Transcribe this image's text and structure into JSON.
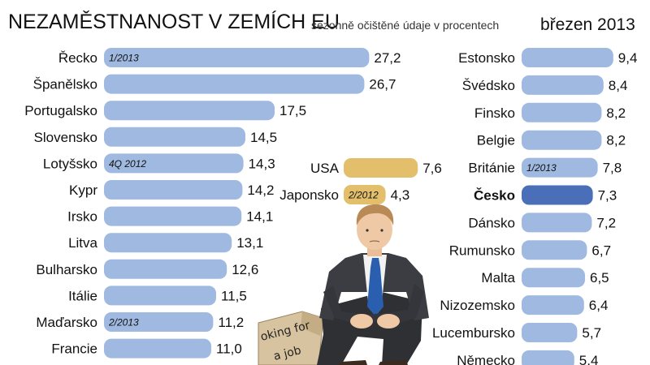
{
  "header": {
    "title": "NEZAMĚSTNANOST V ZEMÍCH EU",
    "subtitle": "sezonně očištěné údaje v procentech",
    "date": "březen 2013"
  },
  "colors": {
    "bar": "#9fb9e0",
    "highlight": "#4a6eb8",
    "non_eu": "#e3bf6c"
  },
  "illustration": {
    "icon": "job-seeker-illustration",
    "sign_text": [
      "oking for",
      "a job"
    ]
  },
  "chart_data": [
    {
      "type": "bar",
      "orientation": "horizontal",
      "xlim": [
        0,
        28
      ],
      "categories": [
        "Řecko",
        "Španělsko",
        "Portugalsko",
        "Slovensko",
        "Lotyšsko",
        "Kypr",
        "Irsko",
        "Litva",
        "Bulharsko",
        "Itálie",
        "Maďarsko",
        "Francie"
      ],
      "values": [
        27.2,
        26.7,
        17.5,
        14.5,
        14.3,
        14.2,
        14.1,
        13.1,
        12.6,
        11.5,
        11.2,
        11.0
      ],
      "value_labels": [
        "27,2",
        "26,7",
        "17,5",
        "14,5",
        "14,3",
        "14,2",
        "14,1",
        "13,1",
        "12,6",
        "11,5",
        "11,2",
        "11,0"
      ],
      "notes": {
        "Řecko": "1/2013",
        "Lotyšsko": "4Q 2012",
        "Maďarsko": "2/2013"
      }
    },
    {
      "type": "bar",
      "orientation": "horizontal",
      "xlim": [
        0,
        28
      ],
      "categories": [
        "USA",
        "Japonsko"
      ],
      "values": [
        7.6,
        4.3
      ],
      "value_labels": [
        "7,6",
        "4,3"
      ],
      "notes": {
        "Japonsko": "2/2012"
      }
    },
    {
      "type": "bar",
      "orientation": "horizontal",
      "xlim": [
        0,
        28
      ],
      "categories": [
        "Estonsko",
        "Švédsko",
        "Finsko",
        "Belgie",
        "Británie",
        "Česko",
        "Dánsko",
        "Rumunsko",
        "Malta",
        "Nizozemsko",
        "Lucembursko",
        "Německo"
      ],
      "values": [
        9.4,
        8.4,
        8.2,
        8.2,
        7.8,
        7.3,
        7.2,
        6.7,
        6.5,
        6.4,
        5.7,
        5.4
      ],
      "value_labels": [
        "9,4",
        "8,4",
        "8,2",
        "8,2",
        "7,8",
        "7,3",
        "7,2",
        "6,7",
        "6,5",
        "6,4",
        "5,7",
        "5,4"
      ],
      "notes": {
        "Británie": "1/2013"
      },
      "highlight": "Česko"
    }
  ]
}
